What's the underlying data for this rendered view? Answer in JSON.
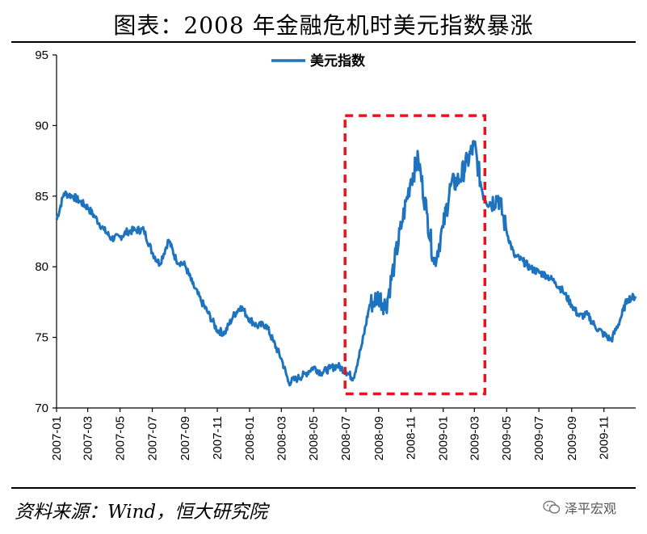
{
  "header": {
    "title": "图表：2008 年金融危机时美元指数暴涨"
  },
  "footer": {
    "source": "资料来源：Wind，恒大研究院",
    "watermark": "泽平宏观"
  },
  "colors": {
    "series": "#1E73BE",
    "highlight_box": "#E8141B"
  },
  "icons": {
    "watermark_icon": "wechat-icon"
  },
  "chart_data": {
    "type": "line",
    "title": "图表：2008 年金融危机时美元指数暴涨",
    "xlabel": "",
    "ylabel": "",
    "ylim": [
      70,
      95
    ],
    "yticks": [
      70,
      75,
      80,
      85,
      90,
      95
    ],
    "xlim": [
      "2007-01",
      "2009-12"
    ],
    "xticks": [
      "2007-01",
      "2007-03",
      "2007-05",
      "2007-07",
      "2007-09",
      "2007-11",
      "2008-01",
      "2008-03",
      "2008-05",
      "2008-07",
      "2008-09",
      "2008-11",
      "2009-01",
      "2009-03",
      "2009-05",
      "2009-07",
      "2009-09",
      "2009-11"
    ],
    "grid": false,
    "legend": {
      "position": "top-center",
      "entries": [
        "美元指数"
      ]
    },
    "highlight_range": {
      "x_start": "2008-07",
      "x_end": "2009-03",
      "y_start": 71,
      "y_end": 90.7
    },
    "series": [
      {
        "name": "美元指数",
        "x": [
          "2007-01-01",
          "2007-01-15",
          "2007-02-01",
          "2007-02-15",
          "2007-03-01",
          "2007-03-15",
          "2007-04-01",
          "2007-04-15",
          "2007-05-01",
          "2007-05-15",
          "2007-06-01",
          "2007-06-15",
          "2007-07-01",
          "2007-07-15",
          "2007-08-01",
          "2007-08-15",
          "2007-09-01",
          "2007-09-15",
          "2007-10-01",
          "2007-10-15",
          "2007-11-01",
          "2007-11-15",
          "2007-12-01",
          "2007-12-15",
          "2008-01-01",
          "2008-01-15",
          "2008-02-01",
          "2008-02-15",
          "2008-03-01",
          "2008-03-15",
          "2008-04-01",
          "2008-04-15",
          "2008-05-01",
          "2008-05-15",
          "2008-06-01",
          "2008-06-15",
          "2008-07-01",
          "2008-07-15",
          "2008-08-01",
          "2008-08-15",
          "2008-09-01",
          "2008-09-15",
          "2008-10-01",
          "2008-10-15",
          "2008-11-01",
          "2008-11-15",
          "2008-12-01",
          "2008-12-15",
          "2009-01-01",
          "2009-01-15",
          "2009-02-01",
          "2009-02-15",
          "2009-03-01",
          "2009-03-15",
          "2009-04-01",
          "2009-04-15",
          "2009-05-01",
          "2009-05-15",
          "2009-06-01",
          "2009-06-15",
          "2009-07-01",
          "2009-07-15",
          "2009-08-01",
          "2009-08-15",
          "2009-09-01",
          "2009-09-15",
          "2009-10-01",
          "2009-10-15",
          "2009-11-01",
          "2009-11-15",
          "2009-12-01",
          "2009-12-15",
          "2009-12-31"
        ],
        "values": [
          83.3,
          85.2,
          85.0,
          84.6,
          84.2,
          83.5,
          82.6,
          82.0,
          82.1,
          82.5,
          82.6,
          82.6,
          81.0,
          80.2,
          81.9,
          80.5,
          80.1,
          78.8,
          77.6,
          76.7,
          75.5,
          75.3,
          76.5,
          77.2,
          76.3,
          75.8,
          75.9,
          74.7,
          73.5,
          71.8,
          72.1,
          72.4,
          72.9,
          72.5,
          72.8,
          73.0,
          72.6,
          72.1,
          74.6,
          77.3,
          77.9,
          77.2,
          80.3,
          83.1,
          86.2,
          87.6,
          83.8,
          80.2,
          82.8,
          85.7,
          86.2,
          87.4,
          88.6,
          85.5,
          84.5,
          85.0,
          82.5,
          80.8,
          80.4,
          79.9,
          79.6,
          79.4,
          78.9,
          78.3,
          77.3,
          76.5,
          76.6,
          75.8,
          75.2,
          74.8,
          76.2,
          77.7,
          77.9
        ]
      }
    ]
  }
}
